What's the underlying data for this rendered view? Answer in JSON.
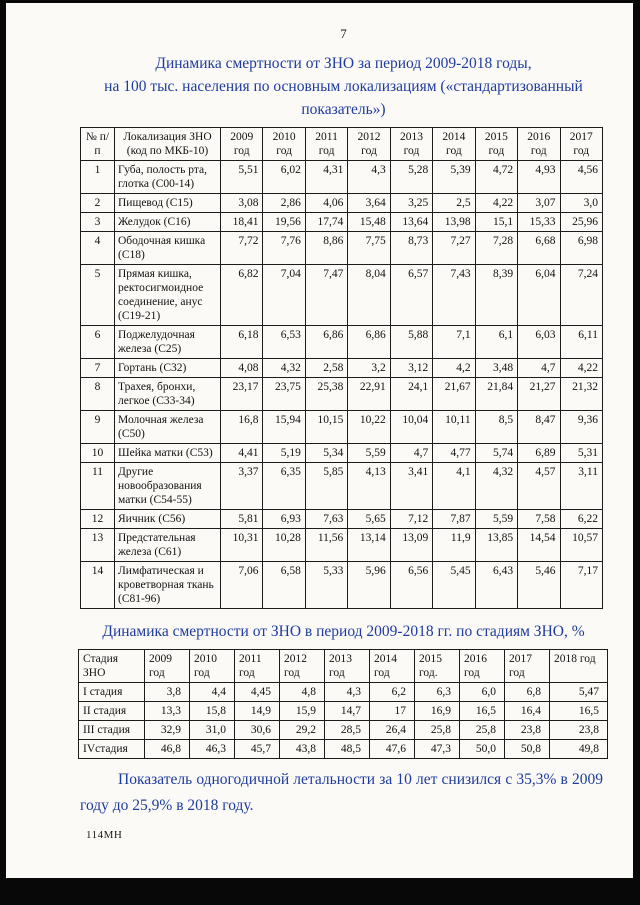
{
  "page": {
    "number": "7",
    "footer_code": "114МН"
  },
  "colors": {
    "heading_blue": "#1e3c9e",
    "text_black": "#141414"
  },
  "table1": {
    "title_lines": [
      "Динамика смертности от ЗНО за период 2009-2018 годы,",
      "на 100 тыс. населения по основным локализациям («стандартизованный",
      "показатель»)"
    ],
    "headers": [
      "№ п/п",
      "Локализация ЗНО (код по МКБ-10)",
      "2009 год",
      "2010 год",
      "2011 год",
      "2012 год",
      "2013 год",
      "2014 год",
      "2015 год",
      "2016 год",
      "2017 год"
    ],
    "rows": [
      {
        "num": "1",
        "name": "Губа, полость рта, глотка (С00-14)",
        "values": [
          "5,51",
          "6,02",
          "4,31",
          "4,3",
          "5,28",
          "5,39",
          "4,72",
          "4,93",
          "4,56"
        ]
      },
      {
        "num": "2",
        "name": "Пищевод (С15)",
        "values": [
          "3,08",
          "2,86",
          "4,06",
          "3,64",
          "3,25",
          "2,5",
          "4,22",
          "3,07",
          "3,0"
        ]
      },
      {
        "num": "3",
        "name": "Желудок (С16)",
        "values": [
          "18,41",
          "19,56",
          "17,74",
          "15,48",
          "13,64",
          "13,98",
          "15,1",
          "15,33",
          "25,96"
        ]
      },
      {
        "num": "4",
        "name": "Ободочная кишка (С18)",
        "values": [
          "7,72",
          "7,76",
          "8,86",
          "7,75",
          "8,73",
          "7,27",
          "7,28",
          "6,68",
          "6,98"
        ]
      },
      {
        "num": "5",
        "name": "Прямая кишка, ректосигмоидное соединение, анус (С19-21)",
        "values": [
          "6,82",
          "7,04",
          "7,47",
          "8,04",
          "6,57",
          "7,43",
          "8,39",
          "6,04",
          "7,24"
        ]
      },
      {
        "num": "6",
        "name": "Поджелудочная железа (С25)",
        "values": [
          "6,18",
          "6,53",
          "6,86",
          "6,86",
          "5,88",
          "7,1",
          "6,1",
          "6,03",
          "6,11"
        ]
      },
      {
        "num": "7",
        "name": "Гортань (С32)",
        "values": [
          "4,08",
          "4,32",
          "2,58",
          "3,2",
          "3,12",
          "4,2",
          "3,48",
          "4,7",
          "4,22"
        ]
      },
      {
        "num": "8",
        "name": "Трахея, бронхи, легкое (С33-34)",
        "values": [
          "23,17",
          "23,75",
          "25,38",
          "22,91",
          "24,1",
          "21,67",
          "21,84",
          "21,27",
          "21,32"
        ]
      },
      {
        "num": "9",
        "name": "Молочная железа (С50)",
        "values": [
          "16,8",
          "15,94",
          "10,15",
          "10,22",
          "10,04",
          "10,11",
          "8,5",
          "8,47",
          "9,36"
        ]
      },
      {
        "num": "10",
        "name": "Шейка матки (С53)",
        "values": [
          "4,41",
          "5,19",
          "5,34",
          "5,59",
          "4,7",
          "4,77",
          "5,74",
          "6,89",
          "5,31"
        ]
      },
      {
        "num": "11",
        "name": "Другие новообразования матки (С54-55)",
        "values": [
          "3,37",
          "6,35",
          "5,85",
          "4,13",
          "3,41",
          "4,1",
          "4,32",
          "4,57",
          "3,11"
        ]
      },
      {
        "num": "12",
        "name": "Яичник (С56)",
        "values": [
          "5,81",
          "6,93",
          "7,63",
          "5,65",
          "7,12",
          "7,87",
          "5,59",
          "7,58",
          "6,22"
        ]
      },
      {
        "num": "13",
        "name": "Предстательная железа (С61)",
        "values": [
          "10,31",
          "10,28",
          "11,56",
          "13,14",
          "13,09",
          "11,9",
          "13,85",
          "14,54",
          "10,57"
        ]
      },
      {
        "num": "14",
        "name": "Лимфатическая и кроветворная ткань (С81-96)",
        "values": [
          "7,06",
          "6,58",
          "5,33",
          "5,96",
          "6,56",
          "5,45",
          "6,43",
          "5,46",
          "7,17"
        ]
      }
    ]
  },
  "table2": {
    "title": "Динамика смертности от ЗНО в период 2009-2018 гг. по стадиям ЗНО, %",
    "headers": [
      "Стадия ЗНО",
      "2009 год",
      "2010 год",
      "2011 год",
      "2012 год",
      "2013 год",
      "2014 год",
      "2015 год.",
      "2016 год",
      "2017 год",
      "2018 год"
    ],
    "rows": [
      {
        "name": "I стадия",
        "values": [
          "3,8",
          "4,4",
          "4,45",
          "4,8",
          "4,3",
          "6,2",
          "6,3",
          "6,0",
          "6,8",
          "5,47"
        ]
      },
      {
        "name": "II стадия",
        "values": [
          "13,3",
          "15,8",
          "14,9",
          "15,9",
          "14,7",
          "17",
          "16,9",
          "16,5",
          "16,4",
          "16,5"
        ]
      },
      {
        "name": "III стадия",
        "values": [
          "32,9",
          "31,0",
          "30,6",
          "29,2",
          "28,5",
          "26,4",
          "25,8",
          "25,8",
          "23,8",
          "23,8"
        ]
      },
      {
        "name": "IVстадия",
        "values": [
          "46,8",
          "46,3",
          "45,7",
          "43,8",
          "48,5",
          "47,6",
          "47,3",
          "50,0",
          "50,8",
          "49,8"
        ]
      }
    ]
  },
  "note": "Показатель одногодичной летальности за 10 лет снизился с 35,3% в 2009 году до 25,9% в 2018 году."
}
